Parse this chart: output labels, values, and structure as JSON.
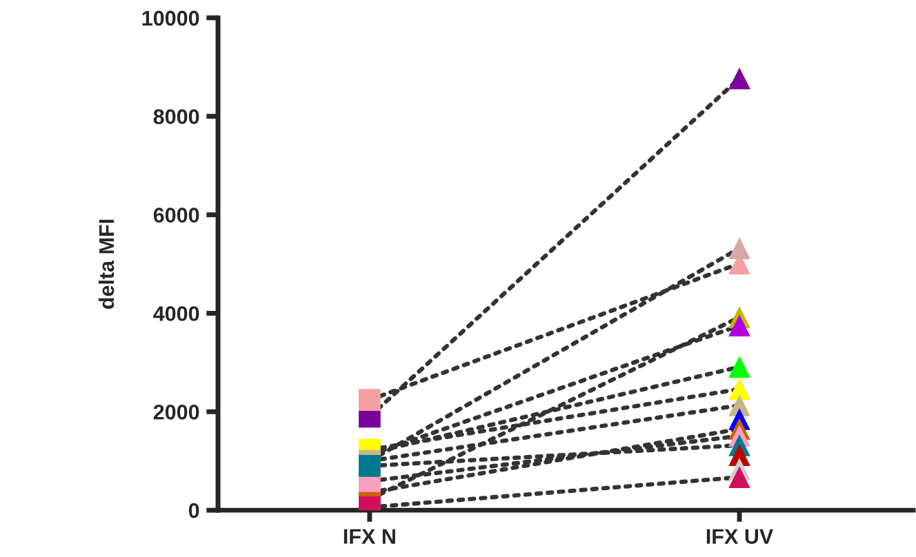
{
  "chart_data": {
    "type": "line",
    "ylabel": "delta MFI",
    "categories": [
      "IFX N",
      "IFX UV"
    ],
    "ylim": [
      0,
      10000
    ],
    "yticks": [
      0,
      2000,
      4000,
      6000,
      8000,
      10000
    ],
    "grid": false,
    "legend": false,
    "marker": [
      "square",
      "triangle"
    ],
    "line_style": "dotted",
    "series": [
      {
        "color": "#7b0099",
        "values": [
          1900,
          8770
        ]
      },
      {
        "color": "#f4a0a0",
        "values": [
          2240,
          5010
        ]
      },
      {
        "color": "#d8a8a8",
        "values": [
          1000,
          5320
        ]
      },
      {
        "color": "#c0b800",
        "values": [
          220,
          3920
        ]
      },
      {
        "color": "#b000e0",
        "values": [
          1120,
          3750
        ]
      },
      {
        "color": "#00ff00",
        "values": [
          1160,
          2910
        ]
      },
      {
        "color": "#ffff00",
        "values": [
          1230,
          2460
        ]
      },
      {
        "color": "#c8b888",
        "values": [
          1000,
          2130
        ]
      },
      {
        "color": "#0000ff",
        "values": [
          null,
          1850
        ]
      },
      {
        "color": "#d06000",
        "values": [
          360,
          1650
        ]
      },
      {
        "color": "#f8a0c0",
        "values": [
          590,
          1510
        ]
      },
      {
        "color": "#007890",
        "values": [
          900,
          1320
        ]
      },
      {
        "color": "#c00000",
        "values": [
          null,
          1120
        ]
      },
      {
        "color": "#d0d0d0",
        "values": [
          null,
          840
        ]
      },
      {
        "color": "#d0105f",
        "values": [
          60,
          670
        ]
      }
    ]
  }
}
